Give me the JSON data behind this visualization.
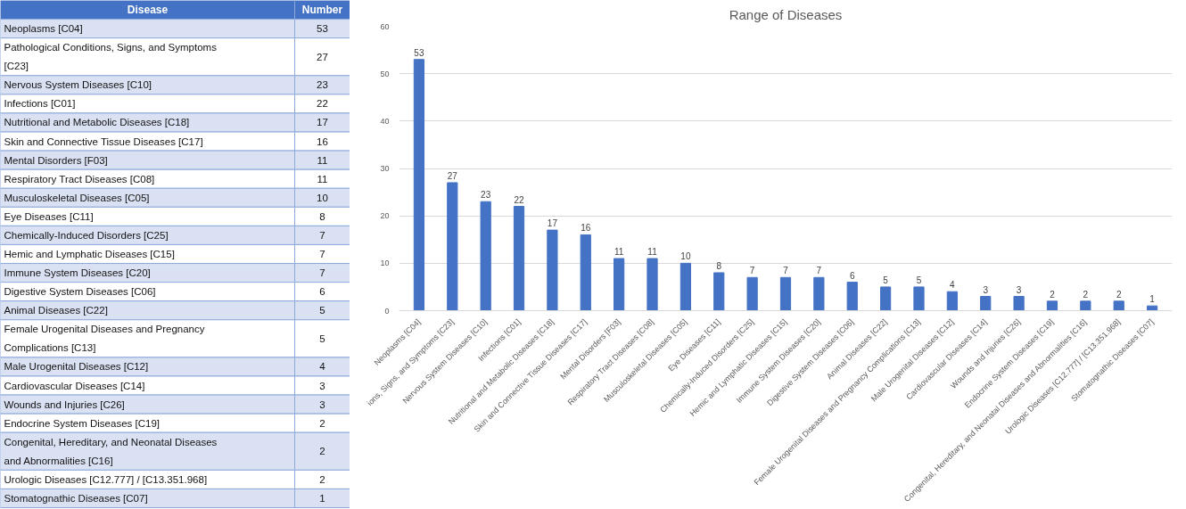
{
  "chart_data": [
    {
      "type": "other",
      "annotations": [
        "Disease",
        "Number"
      ],
      "categories": [
        "Neoplasms [C04]",
        "Pathological Conditions, Signs, and Symptoms [C23]",
        "Nervous System Diseases [C10]",
        "Infections [C01]",
        "Nutritional and Metabolic Diseases [C18]",
        "Skin and Connective Tissue Diseases [C17]",
        "Mental Disorders [F03]",
        "Respiratory Tract Diseases [C08]",
        "Musculoskeletal Diseases [C05]",
        "Eye Diseases [C11]",
        "Chemically-Induced Disorders [C25]",
        "Hemic and Lymphatic Diseases [C15]",
        "Immune System Diseases [C20]",
        "Digestive System Diseases [C06]",
        "Animal Diseases [C22]",
        "Female Urogenital Diseases and Pregnancy Complications [C13]",
        "Male Urogenital Diseases [C12]",
        "Cardiovascular Diseases [C14]",
        "Wounds and Injuries [C26]",
        "Endocrine System Diseases [C19]",
        "Congenital, Hereditary, and Neonatal Diseases and Abnormalities [C16]",
        "Urologic Diseases [C12.777] / [C13.351.968]",
        "Stomatognathic Diseases [C07]"
      ],
      "values": [
        53,
        27,
        23,
        22,
        17,
        16,
        11,
        11,
        10,
        8,
        7,
        7,
        7,
        6,
        5,
        5,
        4,
        3,
        3,
        2,
        2,
        2,
        1
      ],
      "data_labels": true
    },
    {
      "type": "bar",
      "title": "Range of Diseases",
      "categories": [
        "Neoplasms [C04]",
        "ions, Signs, and Symptoms [C23]",
        "Nervous System Diseases [C10]",
        "Infections [C01]",
        "Nutritional and Metabolic Diseases [C18]",
        "Skin and Connective Tissue Diseases [C17]",
        "Mental Disorders [F03]",
        "Respiratory Tract Diseases [C08]",
        "Musculoskeletal Diseases [C05]",
        "Eye Diseases [C11]",
        "Chemically-Induced Disorders [C25]",
        "Hemic and Lymphatic Diseases [C15]",
        "Immune System Diseases [C20]",
        "Digestive System Diseases [C06]",
        "Animal Diseases [C22]",
        "Female Urogenital Diseases and Pregnancy Complications [C13]",
        "Male Urogenital Diseases [C12]",
        "Cardiovascular Diseases [C14]",
        "Wounds and Injuries [C26]",
        "Endocrine System Diseases [C19]",
        "Congenital, Hereditary, and Neonatal Diseases and Abnormalities [C16]",
        "Urologic Diseases [C12.777] / [C13.351.968]",
        "Stomatognathic Diseases [C07]"
      ],
      "values": [
        53,
        27,
        23,
        22,
        17,
        16,
        11,
        11,
        10,
        8,
        7,
        7,
        7,
        6,
        5,
        5,
        4,
        3,
        3,
        2,
        2,
        2,
        1
      ],
      "color": "#4472c4",
      "ylim": [
        0,
        60
      ],
      "yticks": [
        0,
        10,
        20,
        30,
        40,
        50,
        60
      ],
      "grid": "y",
      "data_labels": true
    }
  ]
}
